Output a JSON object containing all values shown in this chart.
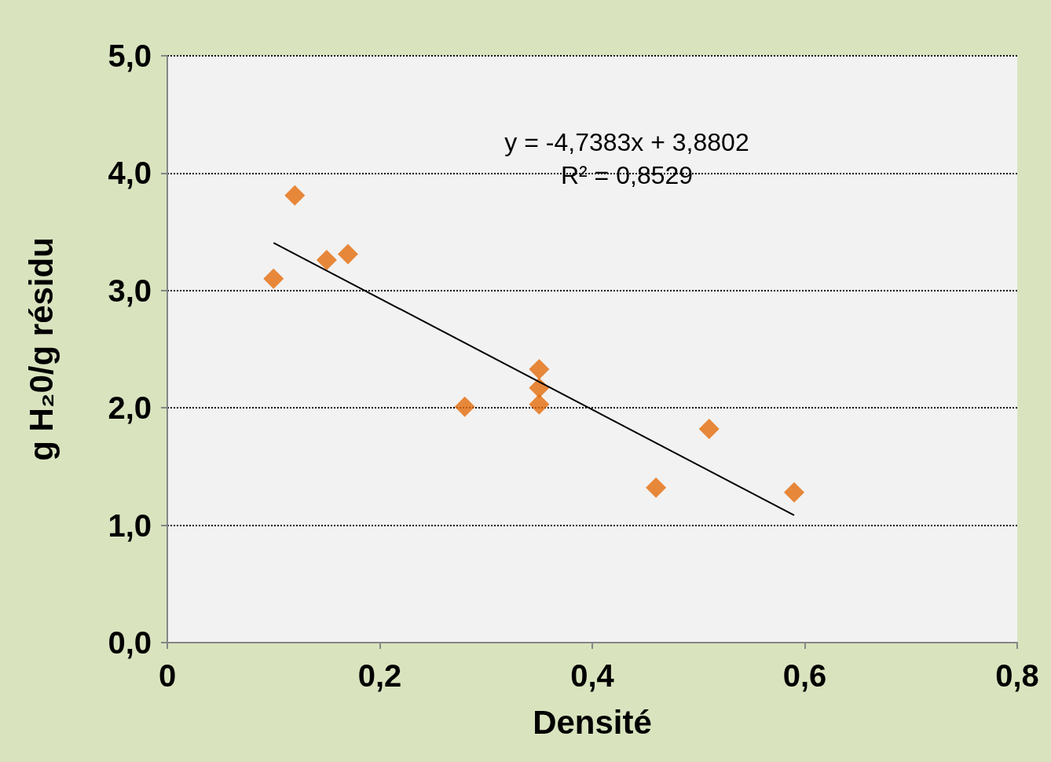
{
  "chart_data": {
    "type": "scatter",
    "xlabel": "Densité",
    "ylabel": "g H₂0/g résidu",
    "xlim": [
      0,
      0.8
    ],
    "xticks": [
      0,
      {
        "value": 0.2,
        "label": "0,2"
      },
      {
        "value": 0.4,
        "label": "0,4"
      },
      {
        "value": 0.6,
        "label": "0,6"
      },
      {
        "value": 0.8,
        "label": "0,8"
      }
    ],
    "ylim": [
      0,
      5
    ],
    "yticks": [
      {
        "value": 0,
        "label": "0,0"
      },
      {
        "value": 1,
        "label": "1,0"
      },
      {
        "value": 2,
        "label": "2,0"
      },
      {
        "value": 3,
        "label": "3,0"
      },
      {
        "value": 4,
        "label": "4,0"
      },
      {
        "value": 5,
        "label": "5,0"
      }
    ],
    "grid": "y",
    "series": [
      {
        "marker": "diamond",
        "color": "#e46c0a",
        "x": [
          0.1,
          0.12,
          0.15,
          0.17,
          0.28,
          0.35,
          0.35,
          0.35,
          0.46,
          0.51,
          0.59
        ],
        "values": [
          3.1,
          3.81,
          3.26,
          3.31,
          2.01,
          2.33,
          2.17,
          2.03,
          1.32,
          1.82,
          1.28
        ]
      },
      {
        "type": "line",
        "marker": "none",
        "color": "#000000",
        "x": [
          0.1,
          0.59
        ],
        "values": [
          3.406,
          1.085
        ]
      }
    ],
    "annotations": [
      "y = -4,7383x + 3,8802",
      "R² = 0,8529"
    ]
  }
}
